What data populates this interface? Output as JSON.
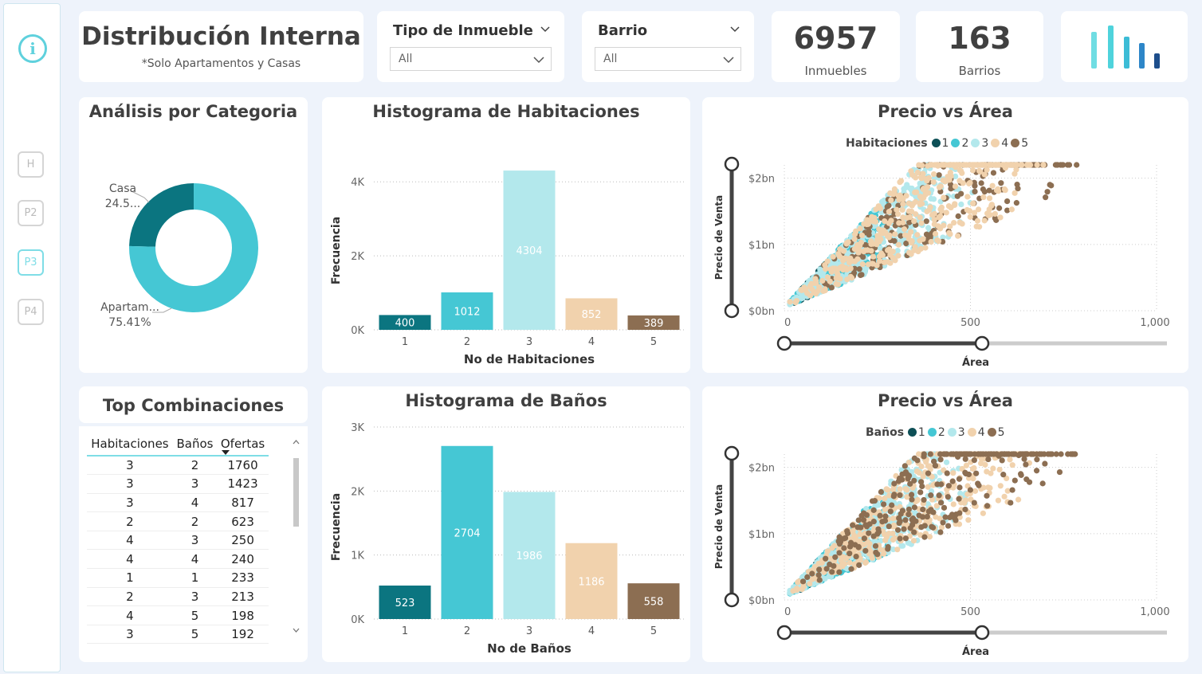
{
  "sidebar": {
    "nav": [
      "H",
      "P2",
      "P3",
      "P4"
    ],
    "active": "P3"
  },
  "header": {
    "title": "Distribución Interna",
    "subtitle": "*Solo Apartamentos y Casas"
  },
  "filters": [
    {
      "label": "Tipo de Inmueble",
      "value": "All"
    },
    {
      "label": "Barrio",
      "value": "All"
    }
  ],
  "kpis": [
    {
      "value": "6957",
      "label": "Inmuebles"
    },
    {
      "value": "163",
      "label": "Barrios"
    }
  ],
  "colors": {
    "c1": "#0b7580",
    "c2": "#45c7d4",
    "c3": "#b3e8ec",
    "c4": "#f1d2ad",
    "c5": "#8c6e52",
    "dark1": "#0d4f56"
  },
  "donut": {
    "title": "Análisis por Categoria",
    "chart_data": {
      "type": "pie",
      "categories": [
        "Casa",
        "Apartamento"
      ],
      "values": [
        24.59,
        75.41
      ],
      "labels": [
        [
          "Casa",
          "24.5..."
        ],
        [
          "Apartam...",
          "75.41%"
        ]
      ]
    }
  },
  "hist_hab": {
    "title": "Histograma de Habitaciones",
    "chart_data": {
      "type": "bar",
      "categories": [
        "1",
        "2",
        "3",
        "4",
        "5"
      ],
      "values": [
        400,
        1012,
        4304,
        852,
        389
      ],
      "xlabel": "No de Habitaciones",
      "ylabel": "Frecuencia",
      "yticks": [
        "0K",
        "2K",
        "4K"
      ],
      "ylim": [
        0,
        4500
      ]
    }
  },
  "hist_ban": {
    "title": "Histograma de Baños",
    "chart_data": {
      "type": "bar",
      "categories": [
        "1",
        "2",
        "3",
        "4",
        "5"
      ],
      "values": [
        523,
        2704,
        1986,
        1186,
        558
      ],
      "xlabel": "No de Baños",
      "ylabel": "Frecuencia",
      "yticks": [
        "0K",
        "1K",
        "2K",
        "3K"
      ],
      "ylim": [
        0,
        3000
      ]
    }
  },
  "top": {
    "title": "Top Combinaciones",
    "columns": [
      "Habitaciones",
      "Baños",
      "Ofertas"
    ],
    "rows": [
      [
        "3",
        "2",
        "1760"
      ],
      [
        "3",
        "3",
        "1423"
      ],
      [
        "3",
        "4",
        "817"
      ],
      [
        "2",
        "2",
        "623"
      ],
      [
        "4",
        "3",
        "250"
      ],
      [
        "4",
        "4",
        "240"
      ],
      [
        "1",
        "1",
        "233"
      ],
      [
        "2",
        "3",
        "213"
      ],
      [
        "4",
        "5",
        "198"
      ],
      [
        "3",
        "5",
        "192"
      ]
    ]
  },
  "scatter1": {
    "title": "Precio vs Área",
    "chart_data": {
      "type": "scatter",
      "legend_title": "Habitaciones",
      "series": [
        {
          "name": "1"
        },
        {
          "name": "2"
        },
        {
          "name": "3"
        },
        {
          "name": "4"
        },
        {
          "name": "5"
        }
      ],
      "xlabel": "Área",
      "ylabel": "Precio de Venta",
      "xticks": [
        "0",
        "500",
        "1,000"
      ],
      "yticks": [
        "$0bn",
        "$1bn",
        "$2bn"
      ],
      "xlim": [
        0,
        1000
      ],
      "ylim": [
        0,
        2.2
      ],
      "legend_position": "top"
    }
  },
  "scatter2": {
    "title": "Precio vs Área",
    "chart_data": {
      "type": "scatter",
      "legend_title": "Baños",
      "series": [
        {
          "name": "1"
        },
        {
          "name": "2"
        },
        {
          "name": "3"
        },
        {
          "name": "4"
        },
        {
          "name": "5"
        }
      ],
      "xlabel": "Área",
      "ylabel": "Precio de Venta",
      "xticks": [
        "0",
        "500",
        "1,000"
      ],
      "yticks": [
        "$0bn",
        "$1bn",
        "$2bn"
      ],
      "xlim": [
        0,
        1000
      ],
      "ylim": [
        0,
        2.2
      ],
      "legend_position": "top"
    }
  }
}
